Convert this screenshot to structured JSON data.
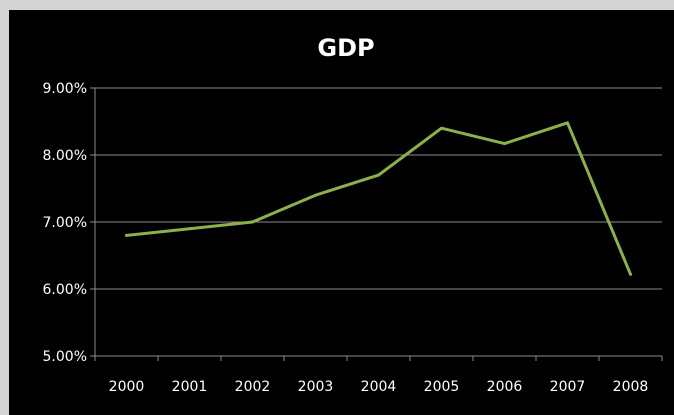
{
  "chart_data": {
    "type": "line",
    "title": "GDP",
    "xlabel": "",
    "ylabel": "",
    "categories": [
      "2000",
      "2001",
      "2002",
      "2003",
      "2004",
      "2005",
      "2006",
      "2007",
      "2008"
    ],
    "series": [
      {
        "values": [
          6.8,
          6.9,
          7.0,
          7.4,
          7.7,
          8.4,
          8.17,
          8.48,
          6.22
        ]
      }
    ],
    "ylim": [
      5.0,
      9.0
    ],
    "yticks": [
      "5.00%",
      "6.00%",
      "7.00%",
      "8.00%",
      "9.00%"
    ],
    "ytick_values": [
      5.0,
      6.0,
      7.0,
      8.0,
      9.0
    ],
    "grid": true,
    "legend": "none",
    "colors": {
      "background": "#000000",
      "line": "#8db04b",
      "grid": "#8c8c8c",
      "text": "#ffffff",
      "frame": "#d4d4d4"
    }
  }
}
